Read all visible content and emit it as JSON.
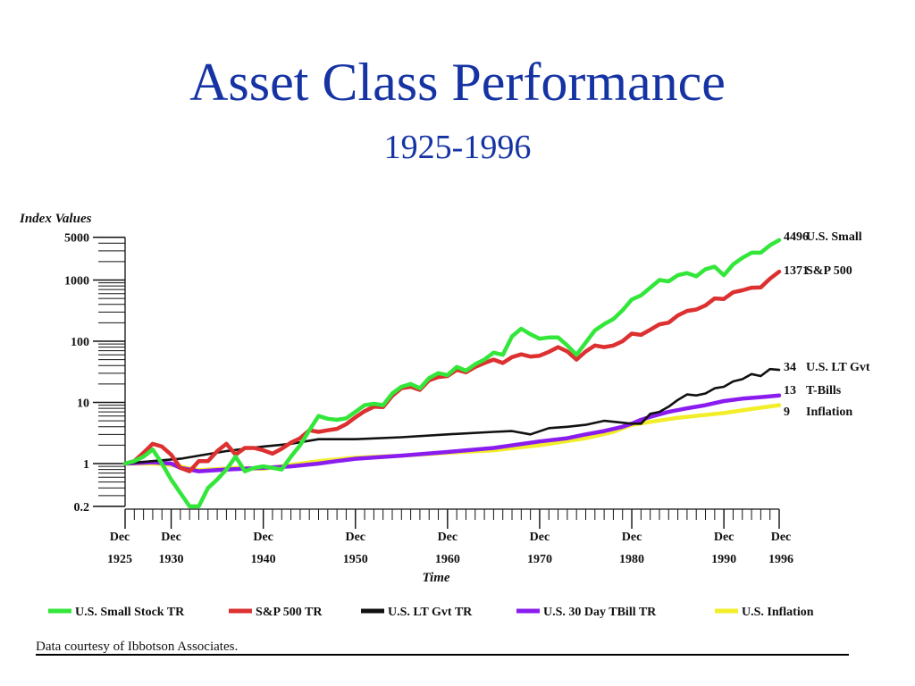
{
  "title": "Asset Class Performance",
  "subtitle": "1925-1996",
  "footnote": "Data courtesy of Ibbotson Associates.",
  "chart_data": {
    "type": "line",
    "ylabel": "Index Values",
    "xlabel": "Time",
    "yscale": "log",
    "ylim": [
      0.2,
      5000
    ],
    "xlim": [
      1925,
      1996
    ],
    "yticks": [
      {
        "value": 5000,
        "label": "5000"
      },
      {
        "value": 1000,
        "label": "1000"
      },
      {
        "value": 100,
        "label": "100"
      },
      {
        "value": 10,
        "label": "10"
      },
      {
        "value": 1,
        "label": "1"
      },
      {
        "value": 0.2,
        "label": "0.2"
      }
    ],
    "xticks": [
      {
        "value": 1925,
        "line1": "Dec",
        "line2": "1925"
      },
      {
        "value": 1930,
        "line1": "Dec",
        "line2": "1930"
      },
      {
        "value": 1940,
        "line1": "Dec",
        "line2": "1940"
      },
      {
        "value": 1950,
        "line1": "Dec",
        "line2": "1950"
      },
      {
        "value": 1960,
        "line1": "Dec",
        "line2": "1960"
      },
      {
        "value": 1970,
        "line1": "Dec",
        "line2": "1970"
      },
      {
        "value": 1980,
        "line1": "Dec",
        "line2": "1980"
      },
      {
        "value": 1990,
        "line1": "Dec",
        "line2": "1990"
      },
      {
        "value": 1996,
        "line1": "Dec",
        "line2": "1996"
      }
    ],
    "legend_position": "bottom",
    "series": [
      {
        "name": "U.S. Small Stock TR",
        "color": "#33e63a",
        "end_label": "4496",
        "end_name": "U.S. Small",
        "points": [
          [
            1925,
            1
          ],
          [
            1926,
            1.1
          ],
          [
            1927,
            1.3
          ],
          [
            1928,
            1.7
          ],
          [
            1929,
            1.0
          ],
          [
            1930,
            0.55
          ],
          [
            1931,
            0.33
          ],
          [
            1932,
            0.2
          ],
          [
            1933,
            0.2
          ],
          [
            1934,
            0.4
          ],
          [
            1935,
            0.55
          ],
          [
            1936,
            0.8
          ],
          [
            1937,
            1.3
          ],
          [
            1938,
            0.75
          ],
          [
            1939,
            0.85
          ],
          [
            1940,
            0.9
          ],
          [
            1941,
            0.85
          ],
          [
            1942,
            0.8
          ],
          [
            1943,
            1.3
          ],
          [
            1944,
            2.0
          ],
          [
            1945,
            3.5
          ],
          [
            1946,
            6.0
          ],
          [
            1947,
            5.4
          ],
          [
            1948,
            5.2
          ],
          [
            1949,
            5.5
          ],
          [
            1950,
            7.0
          ],
          [
            1951,
            9.0
          ],
          [
            1952,
            9.5
          ],
          [
            1953,
            9.0
          ],
          [
            1954,
            14
          ],
          [
            1955,
            18
          ],
          [
            1956,
            20
          ],
          [
            1957,
            17
          ],
          [
            1958,
            25
          ],
          [
            1959,
            30
          ],
          [
            1960,
            28
          ],
          [
            1961,
            38
          ],
          [
            1962,
            33
          ],
          [
            1963,
            42
          ],
          [
            1964,
            50
          ],
          [
            1965,
            65
          ],
          [
            1966,
            60
          ],
          [
            1967,
            120
          ],
          [
            1968,
            160
          ],
          [
            1969,
            130
          ],
          [
            1970,
            110
          ],
          [
            1971,
            115
          ],
          [
            1972,
            115
          ],
          [
            1973,
            85
          ],
          [
            1974,
            60
          ],
          [
            1975,
            95
          ],
          [
            1976,
            150
          ],
          [
            1977,
            190
          ],
          [
            1978,
            230
          ],
          [
            1979,
            320
          ],
          [
            1980,
            480
          ],
          [
            1981,
            560
          ],
          [
            1982,
            750
          ],
          [
            1983,
            1000
          ],
          [
            1984,
            950
          ],
          [
            1985,
            1200
          ],
          [
            1986,
            1300
          ],
          [
            1987,
            1150
          ],
          [
            1988,
            1500
          ],
          [
            1989,
            1650
          ],
          [
            1990,
            1200
          ],
          [
            1991,
            1800
          ],
          [
            1992,
            2300
          ],
          [
            1993,
            2800
          ],
          [
            1994,
            2800
          ],
          [
            1995,
            3700
          ],
          [
            1996,
            4496
          ]
        ]
      },
      {
        "name": "S&P 500 TR",
        "color": "#dd3030",
        "end_label": "1371",
        "end_name": "S&P 500",
        "points": [
          [
            1925,
            1
          ],
          [
            1926,
            1.1
          ],
          [
            1927,
            1.5
          ],
          [
            1928,
            2.1
          ],
          [
            1929,
            1.9
          ],
          [
            1930,
            1.4
          ],
          [
            1931,
            0.85
          ],
          [
            1932,
            0.75
          ],
          [
            1933,
            1.1
          ],
          [
            1934,
            1.1
          ],
          [
            1935,
            1.6
          ],
          [
            1936,
            2.1
          ],
          [
            1937,
            1.4
          ],
          [
            1938,
            1.8
          ],
          [
            1939,
            1.8
          ],
          [
            1940,
            1.65
          ],
          [
            1941,
            1.45
          ],
          [
            1942,
            1.75
          ],
          [
            1943,
            2.2
          ],
          [
            1944,
            2.6
          ],
          [
            1945,
            3.5
          ],
          [
            1946,
            3.3
          ],
          [
            1947,
            3.5
          ],
          [
            1948,
            3.7
          ],
          [
            1949,
            4.4
          ],
          [
            1950,
            5.7
          ],
          [
            1951,
            7.2
          ],
          [
            1952,
            8.5
          ],
          [
            1953,
            8.4
          ],
          [
            1954,
            12.8
          ],
          [
            1955,
            17
          ],
          [
            1956,
            18
          ],
          [
            1957,
            16
          ],
          [
            1958,
            23
          ],
          [
            1959,
            26
          ],
          [
            1960,
            27
          ],
          [
            1961,
            34
          ],
          [
            1962,
            31
          ],
          [
            1963,
            38
          ],
          [
            1964,
            44
          ],
          [
            1965,
            50
          ],
          [
            1966,
            44
          ],
          [
            1967,
            55
          ],
          [
            1968,
            61
          ],
          [
            1969,
            56
          ],
          [
            1970,
            58
          ],
          [
            1971,
            67
          ],
          [
            1972,
            80
          ],
          [
            1973,
            68
          ],
          [
            1974,
            50
          ],
          [
            1975,
            68
          ],
          [
            1976,
            85
          ],
          [
            1977,
            80
          ],
          [
            1978,
            85
          ],
          [
            1979,
            100
          ],
          [
            1980,
            133
          ],
          [
            1981,
            127
          ],
          [
            1982,
            154
          ],
          [
            1983,
            189
          ],
          [
            1984,
            201
          ],
          [
            1985,
            264
          ],
          [
            1986,
            313
          ],
          [
            1987,
            330
          ],
          [
            1988,
            385
          ],
          [
            1989,
            500
          ],
          [
            1990,
            490
          ],
          [
            1991,
            630
          ],
          [
            1992,
            680
          ],
          [
            1993,
            750
          ],
          [
            1994,
            760
          ],
          [
            1995,
            1050
          ],
          [
            1996,
            1371
          ]
        ]
      },
      {
        "name": "U.S. LT Gvt TR",
        "color": "#111111",
        "end_label": "34",
        "end_name": "U.S. LT Gvt",
        "points": [
          [
            1925,
            1
          ],
          [
            1928,
            1.1
          ],
          [
            1931,
            1.2
          ],
          [
            1933,
            1.35
          ],
          [
            1936,
            1.6
          ],
          [
            1940,
            1.9
          ],
          [
            1943,
            2.1
          ],
          [
            1946,
            2.5
          ],
          [
            1950,
            2.5
          ],
          [
            1955,
            2.7
          ],
          [
            1960,
            3.0
          ],
          [
            1965,
            3.3
          ],
          [
            1967,
            3.4
          ],
          [
            1969,
            3.0
          ],
          [
            1971,
            3.8
          ],
          [
            1973,
            4.0
          ],
          [
            1975,
            4.3
          ],
          [
            1977,
            5.0
          ],
          [
            1980,
            4.5
          ],
          [
            1981,
            4.5
          ],
          [
            1982,
            6.5
          ],
          [
            1983,
            7.0
          ],
          [
            1984,
            8.5
          ],
          [
            1985,
            11
          ],
          [
            1986,
            13.5
          ],
          [
            1987,
            13
          ],
          [
            1988,
            14
          ],
          [
            1989,
            17
          ],
          [
            1990,
            18
          ],
          [
            1991,
            22
          ],
          [
            1992,
            24
          ],
          [
            1993,
            29
          ],
          [
            1994,
            27
          ],
          [
            1995,
            35
          ],
          [
            1996,
            34
          ]
        ]
      },
      {
        "name": "U.S. 30 Day TBill TR",
        "color": "#8a1cf0",
        "end_label": "13",
        "end_name": "T-Bills",
        "points": [
          [
            1925,
            1
          ],
          [
            1928,
            1.05
          ],
          [
            1930,
            1.0
          ],
          [
            1931,
            0.85
          ],
          [
            1933,
            0.75
          ],
          [
            1936,
            0.8
          ],
          [
            1940,
            0.85
          ],
          [
            1943,
            0.9
          ],
          [
            1946,
            1.0
          ],
          [
            1948,
            1.1
          ],
          [
            1950,
            1.2
          ],
          [
            1955,
            1.35
          ],
          [
            1960,
            1.55
          ],
          [
            1965,
            1.8
          ],
          [
            1970,
            2.3
          ],
          [
            1973,
            2.6
          ],
          [
            1975,
            3.0
          ],
          [
            1977,
            3.4
          ],
          [
            1979,
            4.0
          ],
          [
            1980,
            4.5
          ],
          [
            1981,
            5.2
          ],
          [
            1982,
            5.8
          ],
          [
            1984,
            7.0
          ],
          [
            1986,
            8.0
          ],
          [
            1988,
            9.0
          ],
          [
            1990,
            10.5
          ],
          [
            1992,
            11.5
          ],
          [
            1994,
            12.2
          ],
          [
            1996,
            13.0
          ]
        ]
      },
      {
        "name": "U.S. Inflation",
        "color": "#f2ee2a",
        "end_label": "9",
        "end_name": "Inflation",
        "points": [
          [
            1925,
            1
          ],
          [
            1928,
            1.0
          ],
          [
            1930,
            0.95
          ],
          [
            1933,
            0.78
          ],
          [
            1937,
            0.85
          ],
          [
            1940,
            0.82
          ],
          [
            1943,
            0.95
          ],
          [
            1946,
            1.1
          ],
          [
            1950,
            1.25
          ],
          [
            1955,
            1.35
          ],
          [
            1960,
            1.5
          ],
          [
            1965,
            1.65
          ],
          [
            1970,
            2.0
          ],
          [
            1975,
            2.6
          ],
          [
            1978,
            3.3
          ],
          [
            1980,
            4.3
          ],
          [
            1982,
            4.8
          ],
          [
            1985,
            5.6
          ],
          [
            1990,
            6.7
          ],
          [
            1993,
            7.8
          ],
          [
            1996,
            9.0
          ]
        ]
      }
    ]
  }
}
